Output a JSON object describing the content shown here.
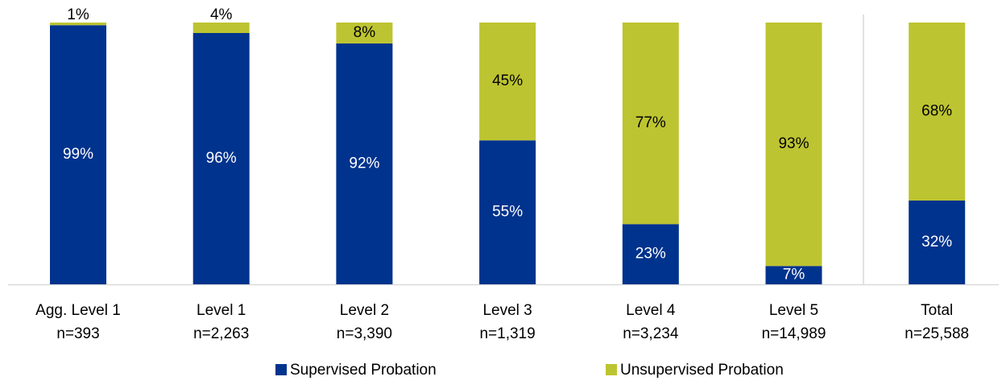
{
  "chart_data": {
    "type": "stacked-bar",
    "categories": [
      "Agg. Level 1",
      "Level 1",
      "Level 2",
      "Level 3",
      "Level 4",
      "Level 5",
      "Total"
    ],
    "n_labels": [
      "n=393",
      "n=2,263",
      "n=3,390",
      "n=1,319",
      "n=3,234",
      "n=14,989",
      "n=25,588"
    ],
    "series": [
      {
        "name": "Supervised Probation",
        "color": "#00338d",
        "values": [
          99,
          96,
          92,
          55,
          23,
          7,
          32
        ],
        "value_labels": [
          "99%",
          "96%",
          "92%",
          "55%",
          "23%",
          "7%",
          "32%"
        ]
      },
      {
        "name": "Unsupervised Probation",
        "color": "#bdc431",
        "values": [
          1,
          4,
          8,
          45,
          77,
          93,
          68
        ],
        "value_labels": [
          "1%",
          "4%",
          "8%",
          "45%",
          "77%",
          "93%",
          "68%"
        ]
      }
    ]
  }
}
